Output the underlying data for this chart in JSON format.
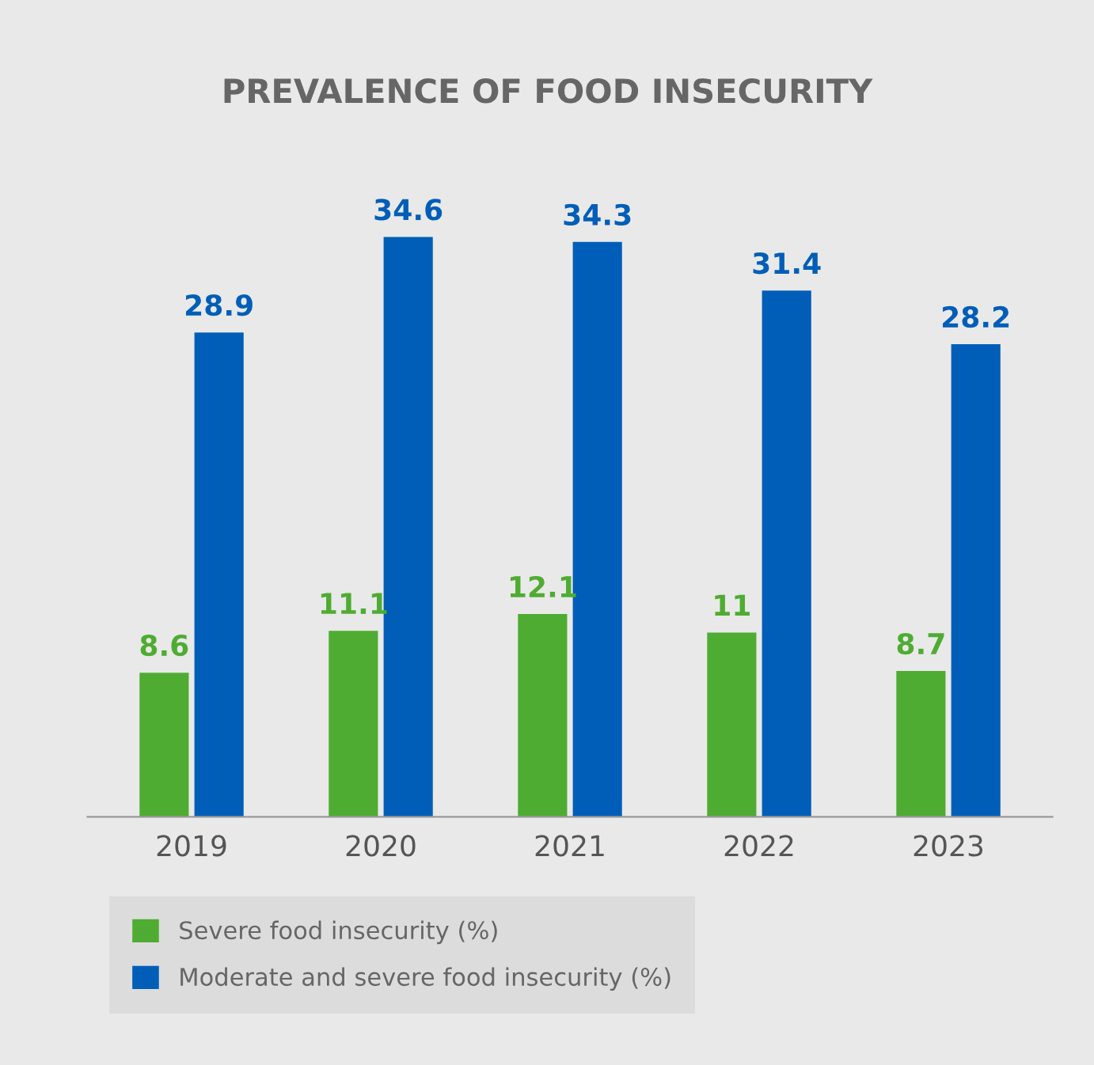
{
  "chart_data": {
    "type": "bar",
    "title": "PREVALENCE OF FOOD INSECURITY",
    "categories": [
      "2019",
      "2020",
      "2021",
      "2022",
      "2023"
    ],
    "series": [
      {
        "name": "Severe food insecurity (%)",
        "color": "#4fac32",
        "values": [
          8.6,
          11.1,
          12.1,
          11,
          8.7
        ]
      },
      {
        "name": "Moderate and severe food insecurity (%)",
        "color": "#005eb8",
        "values": [
          28.9,
          34.6,
          34.3,
          31.4,
          28.2
        ]
      }
    ],
    "data_labels": true,
    "legend": "bottom left",
    "grid": false,
    "tick_labels": "x"
  }
}
